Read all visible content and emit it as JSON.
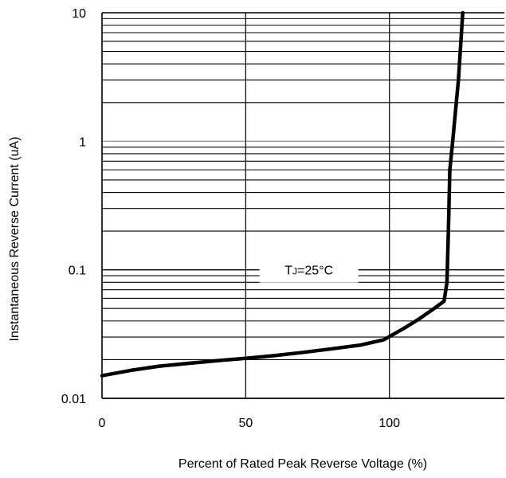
{
  "chart_data": {
    "type": "line",
    "title": "",
    "xlabel": "Percent of Rated Peak Reverse Voltage (%)",
    "ylabel": "Instantaneous Reverse Current (uA)",
    "xlim": [
      0,
      140
    ],
    "ylim": [
      0.01,
      10
    ],
    "yscale": "log",
    "x_ticks": [
      "0",
      "50",
      "100"
    ],
    "y_ticks": [
      "0.01",
      "0.1",
      "1",
      "10"
    ],
    "grid": true,
    "annotation": {
      "prefix": "T",
      "subscript": "J",
      "suffix": "=25°C",
      "position": {
        "x": 72,
        "y": 0.1
      }
    },
    "series": [
      {
        "color": "#000000",
        "x": [
          0,
          10,
          20,
          30,
          40,
          50,
          60,
          70,
          80,
          90,
          98,
          105,
          110,
          115,
          119,
          120,
          120.5,
          121,
          122,
          124,
          125.5
        ],
        "y": [
          0.015,
          0.0165,
          0.0178,
          0.0187,
          0.0196,
          0.0205,
          0.0215,
          0.0228,
          0.0243,
          0.026,
          0.0285,
          0.035,
          0.041,
          0.049,
          0.057,
          0.08,
          0.2,
          0.6,
          1.0,
          3.0,
          10.0
        ]
      }
    ]
  }
}
